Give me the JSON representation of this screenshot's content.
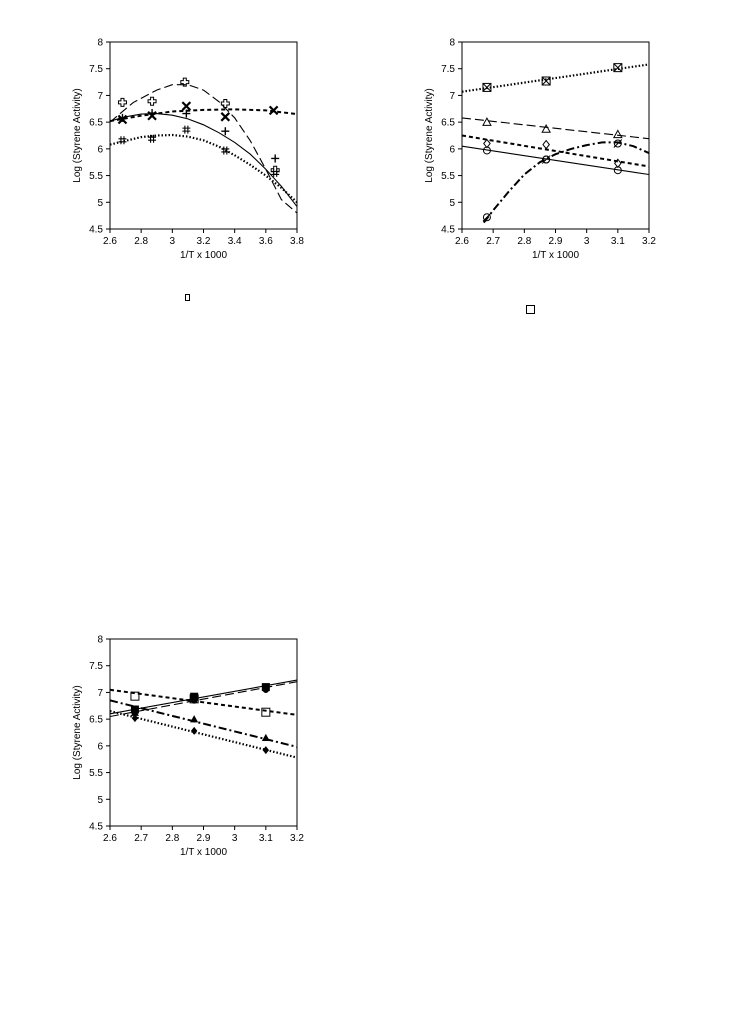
{
  "chart_data": [
    {
      "type": "scatter",
      "xlabel": "1/T x 1000",
      "ylabel": "Log (Styrene Activity)",
      "xlim": [
        2.6,
        3.8
      ],
      "ylim": [
        4.5,
        8
      ],
      "xticks": [
        "2.6",
        "2.8",
        "3",
        "3.2",
        "3.4",
        "3.6",
        "3.8"
      ],
      "yticks": [
        "4.5",
        "5",
        "5.5",
        "6",
        "6.5",
        "7",
        "7.5",
        "8"
      ],
      "series": [
        {
          "marker": "open-cross",
          "line": "long-dash",
          "points": [
            [
              2.68,
              6.87
            ],
            [
              2.87,
              6.89
            ],
            [
              3.08,
              7.25
            ],
            [
              3.34,
              6.85
            ],
            [
              3.66,
              5.6
            ]
          ],
          "curve": [
            [
              2.6,
              6.5
            ],
            [
              2.75,
              6.87
            ],
            [
              2.9,
              7.1
            ],
            [
              3.0,
              7.2
            ],
            [
              3.1,
              7.2
            ],
            [
              3.2,
              7.1
            ],
            [
              3.3,
              6.88
            ],
            [
              3.4,
              6.58
            ],
            [
              3.5,
              6.15
            ],
            [
              3.6,
              5.62
            ],
            [
              3.7,
              5.05
            ],
            [
              3.8,
              4.8
            ]
          ]
        },
        {
          "marker": "x-bold",
          "line": "short-dash",
          "points": [
            [
              2.68,
              6.55
            ],
            [
              2.87,
              6.62
            ],
            [
              3.09,
              6.8
            ],
            [
              3.34,
              6.6
            ],
            [
              3.65,
              6.72
            ]
          ],
          "curve": [
            [
              2.6,
              6.52
            ],
            [
              2.8,
              6.62
            ],
            [
              3.0,
              6.7
            ],
            [
              3.2,
              6.73
            ],
            [
              3.4,
              6.74
            ],
            [
              3.6,
              6.72
            ],
            [
              3.8,
              6.65
            ]
          ]
        },
        {
          "marker": "plus",
          "line": "solid",
          "points": [
            [
              2.68,
              6.58
            ],
            [
              2.87,
              6.67
            ],
            [
              3.09,
              6.66
            ],
            [
              3.34,
              6.33
            ],
            [
              3.66,
              5.82
            ]
          ],
          "curve": [
            [
              2.6,
              6.52
            ],
            [
              2.7,
              6.6
            ],
            [
              2.8,
              6.65
            ],
            [
              2.9,
              6.66
            ],
            [
              3.0,
              6.63
            ],
            [
              3.1,
              6.56
            ],
            [
              3.2,
              6.45
            ],
            [
              3.3,
              6.3
            ],
            [
              3.4,
              6.12
            ],
            [
              3.5,
              5.9
            ],
            [
              3.6,
              5.62
            ],
            [
              3.7,
              5.3
            ],
            [
              3.8,
              4.92
            ]
          ]
        },
        {
          "marker": "double-cross",
          "line": "dotted",
          "points": [
            [
              2.68,
              6.16
            ],
            [
              2.87,
              6.19
            ],
            [
              3.09,
              6.36
            ],
            [
              3.34,
              5.97
            ],
            [
              3.66,
              5.55
            ]
          ],
          "curve": [
            [
              2.6,
              6.08
            ],
            [
              2.7,
              6.15
            ],
            [
              2.8,
              6.22
            ],
            [
              2.9,
              6.25
            ],
            [
              3.0,
              6.26
            ],
            [
              3.1,
              6.23
            ],
            [
              3.2,
              6.16
            ],
            [
              3.3,
              6.04
            ],
            [
              3.4,
              5.88
            ],
            [
              3.5,
              5.7
            ],
            [
              3.6,
              5.5
            ],
            [
              3.7,
              5.27
            ],
            [
              3.8,
              5.0
            ]
          ]
        }
      ]
    },
    {
      "type": "scatter",
      "xlabel": "1/T x 1000",
      "ylabel": "Log (Styrene Activity)",
      "xlim": [
        2.6,
        3.2
      ],
      "ylim": [
        4.5,
        8
      ],
      "xticks": [
        "2.6",
        "2.7",
        "2.8",
        "2.9",
        "3",
        "3.1",
        "3.2"
      ],
      "yticks": [
        "4.5",
        "5",
        "5.5",
        "6",
        "6.5",
        "7",
        "7.5",
        "8"
      ],
      "series": [
        {
          "marker": "boxed-x",
          "line": "dotted",
          "points": [
            [
              2.68,
              7.15
            ],
            [
              2.87,
              7.27
            ],
            [
              3.1,
              7.52
            ]
          ],
          "curve": [
            [
              2.6,
              7.07
            ],
            [
              3.2,
              7.58
            ]
          ]
        },
        {
          "marker": "triangle-open",
          "line": "long-dash",
          "points": [
            [
              2.68,
              6.5
            ],
            [
              2.87,
              6.37
            ],
            [
              3.1,
              6.27
            ]
          ],
          "curve": [
            [
              2.6,
              6.58
            ],
            [
              3.2,
              6.19
            ]
          ]
        },
        {
          "marker": "diamond-open",
          "line": "short-dash",
          "points": [
            [
              2.68,
              6.1
            ],
            [
              2.87,
              6.08
            ],
            [
              3.1,
              5.73
            ]
          ],
          "curve": [
            [
              2.6,
              6.25
            ],
            [
              3.2,
              5.67
            ]
          ]
        },
        {
          "marker": "circle-open",
          "line": "solid",
          "points": [
            [
              2.68,
              5.97
            ],
            [
              2.87,
              5.8
            ],
            [
              3.1,
              5.6
            ]
          ],
          "curve": [
            [
              2.6,
              6.05
            ],
            [
              3.2,
              5.52
            ]
          ]
        },
        {
          "marker": "circle-slash",
          "line": "dash-dot",
          "points": [
            [
              2.68,
              4.72
            ],
            [
              2.87,
              5.8
            ],
            [
              3.1,
              6.1
            ]
          ],
          "curve": [
            [
              2.67,
              4.62
            ],
            [
              2.7,
              4.85
            ],
            [
              2.75,
              5.2
            ],
            [
              2.8,
              5.52
            ],
            [
              2.85,
              5.75
            ],
            [
              2.9,
              5.9
            ],
            [
              2.95,
              6.0
            ],
            [
              3.0,
              6.07
            ],
            [
              3.05,
              6.12
            ],
            [
              3.1,
              6.12
            ],
            [
              3.15,
              6.05
            ],
            [
              3.2,
              5.92
            ]
          ]
        }
      ]
    },
    {
      "type": "scatter",
      "xlabel": "1/T x 1000",
      "ylabel": "Log (Styrene Activity)",
      "xlim": [
        2.6,
        3.2
      ],
      "ylim": [
        4.5,
        8
      ],
      "xticks": [
        "2.6",
        "2.7",
        "2.8",
        "2.9",
        "3",
        "3.1",
        "3.2"
      ],
      "yticks": [
        "4.5",
        "5",
        "5.5",
        "6",
        "6.5",
        "7",
        "7.5",
        "8"
      ],
      "series": [
        {
          "marker": "square-open",
          "line": "short-dash",
          "points": [
            [
              2.68,
              6.93
            ],
            [
              2.87,
              6.88
            ],
            [
              3.1,
              6.63
            ]
          ],
          "curve": [
            [
              2.6,
              7.05
            ],
            [
              3.2,
              6.58
            ]
          ]
        },
        {
          "marker": "square-filled",
          "line": "solid",
          "points": [
            [
              2.68,
              6.68
            ],
            [
              2.87,
              6.92
            ],
            [
              3.1,
              7.1
            ]
          ],
          "curve": [
            [
              2.6,
              6.6
            ],
            [
              3.2,
              7.23
            ]
          ]
        },
        {
          "marker": "circle-filled",
          "line": "long-dash",
          "points": [
            [
              2.68,
              6.63
            ],
            [
              2.87,
              6.85
            ],
            [
              3.1,
              7.05
            ]
          ],
          "curve": [
            [
              2.6,
              6.55
            ],
            [
              3.2,
              7.2
            ]
          ]
        },
        {
          "marker": "triangle-filled",
          "line": "dash-dot",
          "points": [
            [
              2.68,
              6.62
            ],
            [
              2.87,
              6.5
            ],
            [
              3.1,
              6.15
            ]
          ],
          "curve": [
            [
              2.6,
              6.85
            ],
            [
              3.2,
              5.98
            ]
          ]
        },
        {
          "marker": "diamond-filled",
          "line": "dotted",
          "points": [
            [
              2.68,
              6.52
            ],
            [
              2.87,
              6.28
            ],
            [
              3.1,
              5.92
            ]
          ],
          "curve": [
            [
              2.6,
              6.65
            ],
            [
              3.2,
              5.78
            ]
          ]
        }
      ]
    }
  ]
}
